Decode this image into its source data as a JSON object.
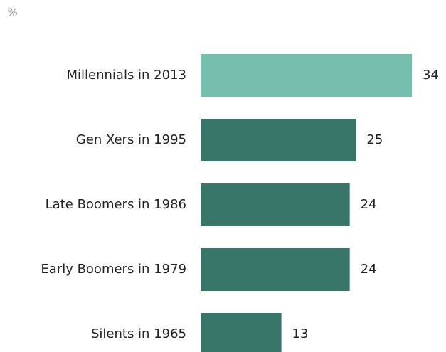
{
  "chart_data": {
    "type": "bar",
    "orientation": "horizontal",
    "unit_label": "%",
    "categories": [
      "Millennials in 2013",
      "Gen Xers in 1995",
      "Late Boomers in 1986",
      "Early Boomers in 1979",
      "Silents in 1965"
    ],
    "values": [
      34,
      25,
      24,
      24,
      13
    ],
    "colors": {
      "highlight": "#76bfae",
      "default": "#38766a"
    },
    "highlight_index": 0,
    "xlim": [
      0,
      34
    ],
    "grid": false,
    "legend": "none"
  }
}
